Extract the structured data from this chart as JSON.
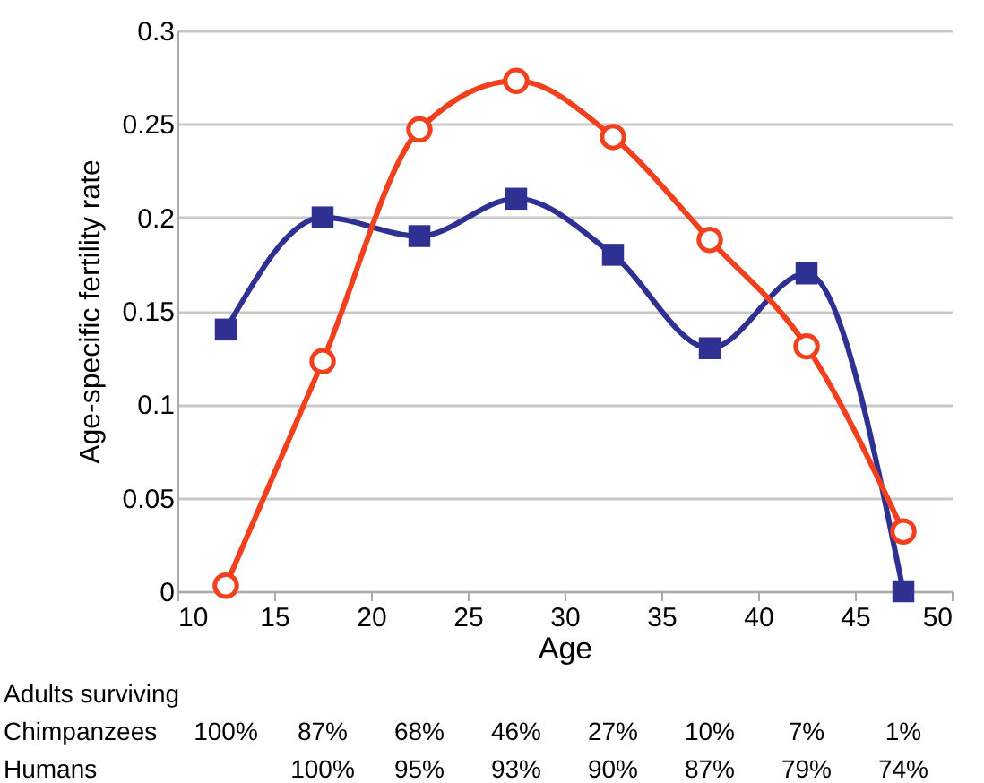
{
  "chart_data": {
    "type": "line",
    "xlabel": "Age",
    "ylabel": "Age-specific fertility rate",
    "x": [
      12.5,
      17.5,
      22.5,
      27.5,
      32.5,
      37.5,
      42.5,
      47.5
    ],
    "series": [
      {
        "color": "#2e3192",
        "marker": "square",
        "values": [
          0.14,
          0.2,
          0.19,
          0.21,
          0.18,
          0.13,
          0.17,
          0.0
        ]
      },
      {
        "color": "#f0401e",
        "marker": "circle",
        "values": [
          0.003,
          0.123,
          0.247,
          0.273,
          0.243,
          0.188,
          0.131,
          0.032
        ]
      }
    ],
    "xlim": [
      10,
      50
    ],
    "xticks": [
      10,
      15,
      20,
      25,
      30,
      35,
      40,
      45,
      50
    ],
    "ylim": [
      0,
      0.3
    ],
    "yticks": [
      0,
      0.05,
      0.1,
      0.15,
      0.2,
      0.25,
      0.3
    ],
    "grid": "y",
    "line_style": "solid",
    "annotations": [
      "Adults surviving",
      "Chimpanzees",
      "100%",
      "87%",
      "68%",
      "46%",
      "27%",
      "10%",
      "7%",
      "1%",
      "Humans",
      "100%",
      "95%",
      "93%",
      "90%",
      "87%",
      "79%",
      "74%"
    ]
  }
}
